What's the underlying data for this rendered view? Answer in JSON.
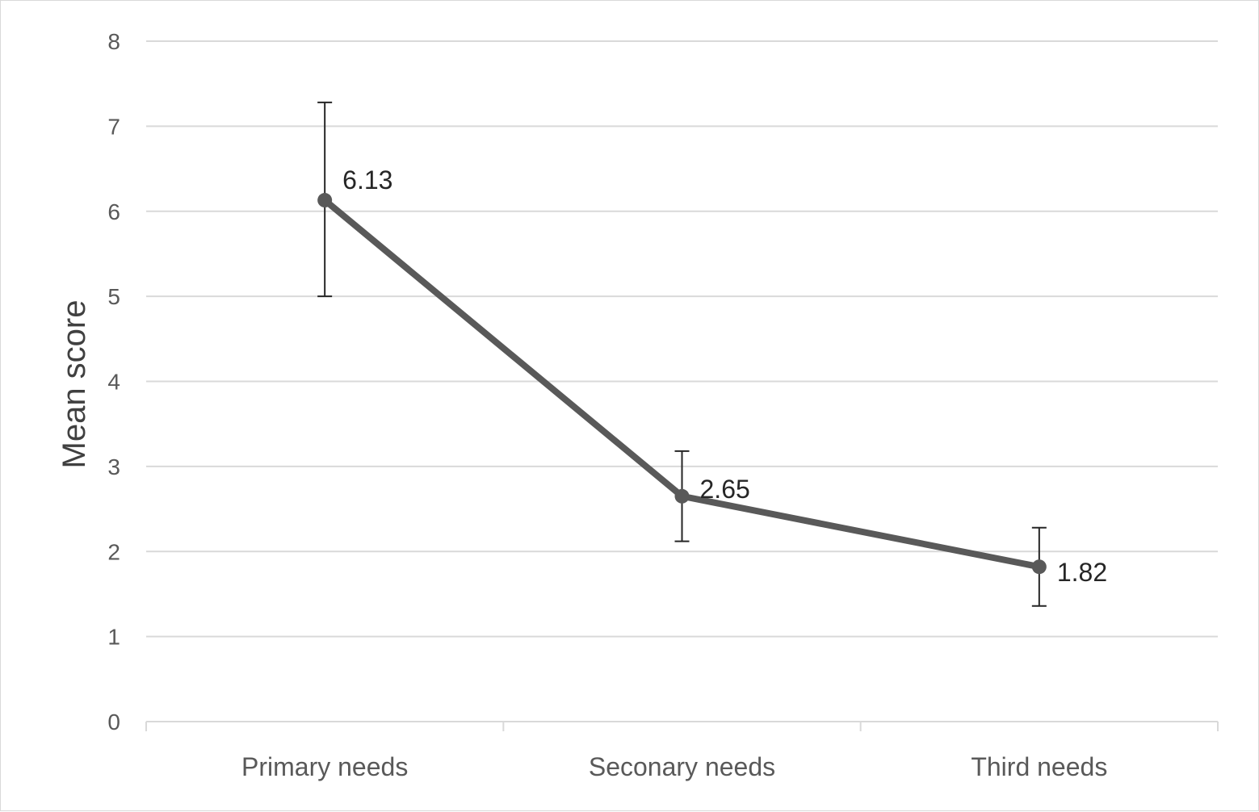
{
  "chart_data": {
    "type": "line",
    "title": "",
    "xlabel": "",
    "ylabel": "Mean  score",
    "ylim": [
      0,
      8
    ],
    "yticks": [
      0,
      1,
      2,
      3,
      4,
      5,
      6,
      7,
      8
    ],
    "categories": [
      "Primary needs",
      "Seconary needs",
      "Third needs"
    ],
    "series": [
      {
        "values": [
          6.13,
          2.65,
          1.82
        ],
        "error_low": [
          5.0,
          2.12,
          1.36
        ],
        "error_high": [
          7.28,
          3.18,
          2.28
        ],
        "data_labels": [
          "6.13",
          "2.65",
          "1.82"
        ],
        "color": "#595959"
      }
    ],
    "grid": true,
    "legend": "none"
  }
}
